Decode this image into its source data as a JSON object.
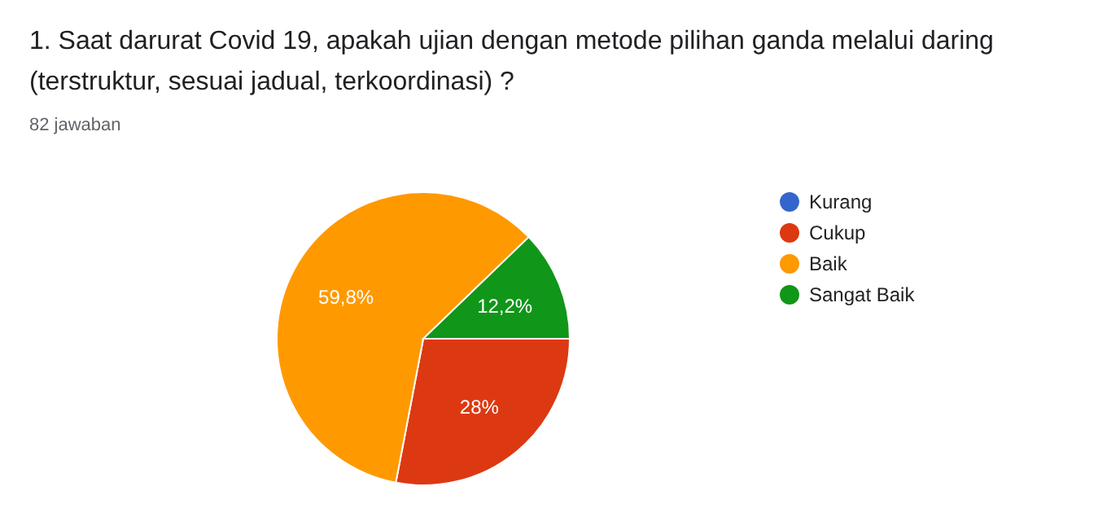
{
  "chart_data": {
    "type": "pie",
    "title": "1. Saat darurat Covid 19, apakah ujian dengan metode pilihan ganda melalui daring (terstruktur, sesuai jadual, terkoordinasi) ?",
    "subtitle": "82 jawaban",
    "categories": [
      "Kurang",
      "Cukup",
      "Baik",
      "Sangat Baik"
    ],
    "values": [
      0,
      28,
      59.8,
      12.2
    ],
    "colors": [
      "#3366cc",
      "#dc3912",
      "#ff9900",
      "#109618"
    ],
    "value_labels": [
      null,
      "28%",
      "59,8%",
      "12,2%"
    ],
    "legend": "right"
  }
}
